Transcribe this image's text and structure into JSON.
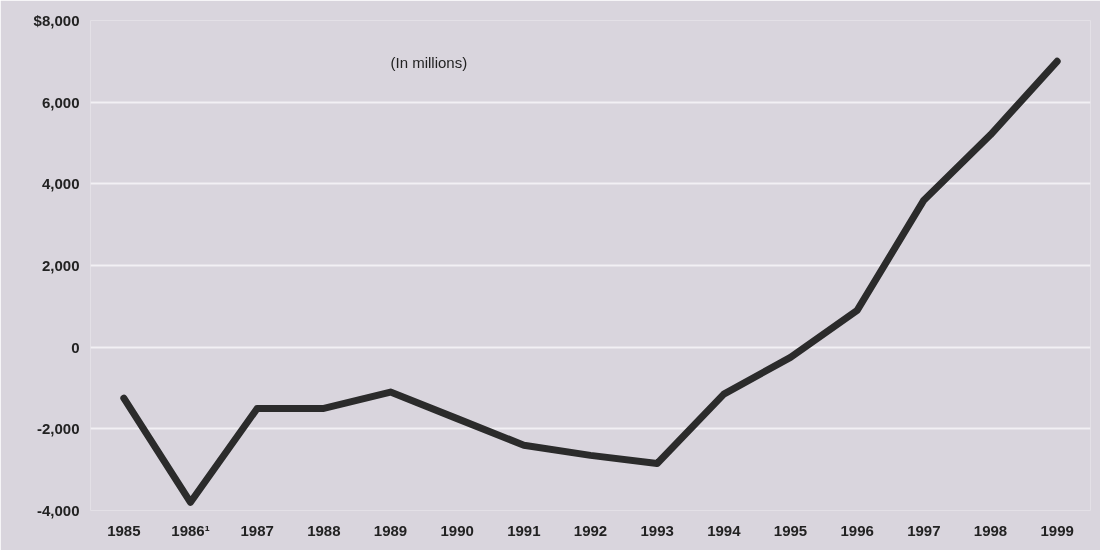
{
  "chart_data": {
    "type": "line",
    "categories": [
      "1985",
      "1986¹",
      "1987",
      "1988",
      "1989",
      "1990",
      "1991",
      "1992",
      "1993",
      "1994",
      "1995",
      "1996",
      "1997",
      "1998",
      "1999"
    ],
    "series": [
      {
        "color": "#2b2b2b",
        "values": [
          -1250,
          -3800,
          -1500,
          -1500,
          -1100,
          -1750,
          -2400,
          -2650,
          -2850,
          -1150,
          -250,
          900,
          3600,
          5200,
          7000
        ]
      }
    ],
    "ylim": [
      -4000,
      8000
    ],
    "yticks": [
      {
        "value": 8000,
        "label": "$8,000"
      },
      {
        "value": 6000,
        "label": "6,000"
      },
      {
        "value": 4000,
        "label": "4,000"
      },
      {
        "value": 2000,
        "label": "2,000"
      },
      {
        "value": 0,
        "label": "0"
      },
      {
        "value": -2000,
        "label": "-2,000"
      },
      {
        "value": -4000,
        "label": "-4,000"
      }
    ],
    "annotations": [
      "(In millions)"
    ],
    "grid": "y",
    "marker": "none",
    "line_style": "solid"
  }
}
